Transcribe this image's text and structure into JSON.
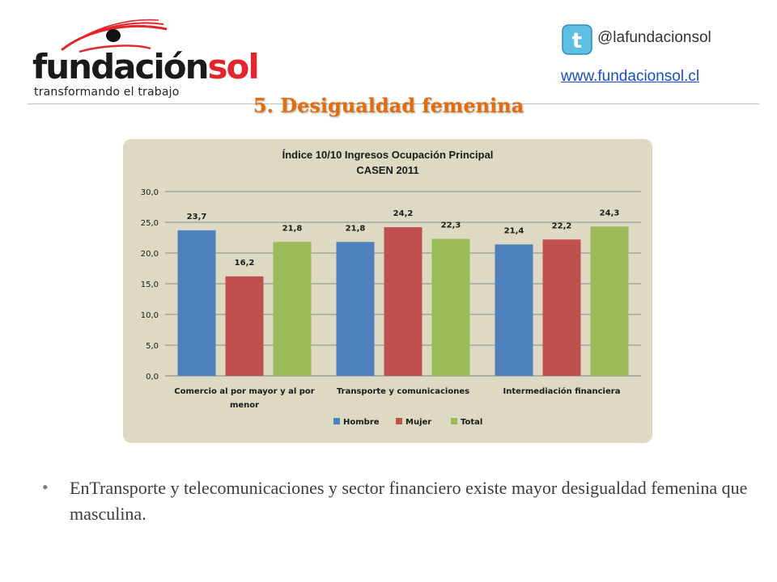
{
  "logo": {
    "name_part1": "fundación",
    "name_part2": "sol",
    "tagline": "transformando el trabajo"
  },
  "social": {
    "twitter_icon": "twitter-bird-icon",
    "twitter_handle": "@lafundacionsol",
    "website": "www.fundacionsol.cl"
  },
  "slide": {
    "title": "5. Desigualdad femenina",
    "bullet": "EnTransporte y telecomunicaciones y sector financiero existe mayor desigualdad femenina que masculina."
  },
  "colors": {
    "title_orange": "#e46c0a",
    "link_blue": "#1a4fc4",
    "chart_bg": "#ddd9c3",
    "hombre": "#4f81bd",
    "mujer": "#c0504d",
    "total": "#9bbb59"
  },
  "chart_data": {
    "type": "bar",
    "title": [
      "Índice 10/10 Ingresos Ocupación Principal",
      "CASEN 2011"
    ],
    "categories": [
      [
        "Comercio al por mayor y al por",
        "menor"
      ],
      [
        "Transporte y comunicaciones"
      ],
      [
        "Intermediación financiera"
      ]
    ],
    "series": [
      {
        "name": "Hombre",
        "color": "#4f81bd",
        "values": [
          23.7,
          21.8,
          21.4
        ],
        "labels": [
          "23,7",
          "21,8",
          "21,4"
        ]
      },
      {
        "name": "Mujer",
        "color": "#c0504d",
        "values": [
          16.2,
          24.2,
          22.2
        ],
        "labels": [
          "16,2",
          "24,2",
          "22,2"
        ]
      },
      {
        "name": "Total",
        "color": "#9bbb59",
        "values": [
          21.8,
          22.3,
          24.3
        ],
        "labels": [
          "21,8",
          "22,3",
          "24,3"
        ]
      }
    ],
    "ylim": [
      0,
      30
    ],
    "yticks": [
      "0,0",
      "5,0",
      "10,0",
      "15,0",
      "20,0",
      "25,0",
      "30,0"
    ],
    "ytick_values": [
      0,
      5,
      10,
      15,
      20,
      25,
      30
    ],
    "grid": true,
    "legend_position": "bottom"
  }
}
